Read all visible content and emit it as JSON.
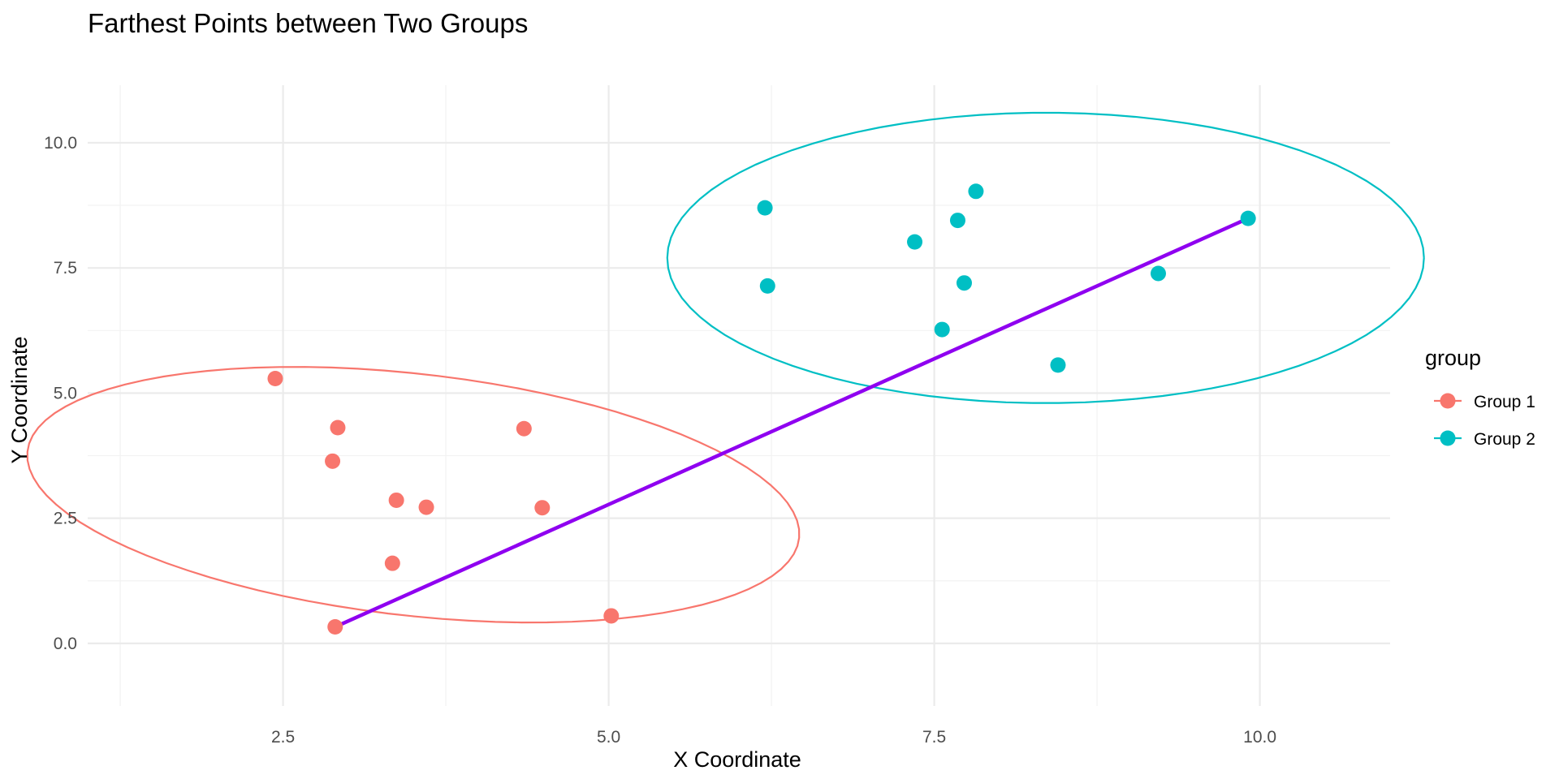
{
  "chart_data": {
    "type": "scatter",
    "title": "Farthest Points between Two Groups",
    "xlabel": "X Coordinate",
    "ylabel": "Y Coordinate",
    "xlim": [
      1.0,
      11.0
    ],
    "ylim": [
      -1.25,
      11.15
    ],
    "x_ticks": [
      2.5,
      5.0,
      7.5,
      10.0
    ],
    "x_tick_labels": [
      "2.5",
      "5.0",
      "7.5",
      "10.0"
    ],
    "y_ticks": [
      0.0,
      2.5,
      5.0,
      7.5,
      10.0
    ],
    "y_tick_labels": [
      "0.0",
      "2.5",
      "5.0",
      "7.5",
      "10.0"
    ],
    "grid": true,
    "legend": {
      "title": "group",
      "position": "right"
    },
    "series": [
      {
        "name": "Group 1",
        "color": "#F8766D",
        "points": [
          [
            2.44,
            5.29
          ],
          [
            2.92,
            4.31
          ],
          [
            2.88,
            3.64
          ],
          [
            3.37,
            2.86
          ],
          [
            3.6,
            2.72
          ],
          [
            3.34,
            1.6
          ],
          [
            2.9,
            0.33
          ],
          [
            4.35,
            4.29
          ],
          [
            4.49,
            2.71
          ],
          [
            5.02,
            0.55
          ]
        ],
        "ellipse": {
          "center": [
            3.5,
            2.97
          ],
          "rx": 2.25,
          "ry": 3.2,
          "rotation_deg": 58
        }
      },
      {
        "name": "Group 2",
        "color": "#00BFC4",
        "points": [
          [
            6.2,
            8.7
          ],
          [
            6.22,
            7.14
          ],
          [
            7.35,
            8.02
          ],
          [
            7.68,
            8.45
          ],
          [
            7.82,
            9.03
          ],
          [
            7.73,
            7.2
          ],
          [
            7.56,
            6.27
          ],
          [
            8.45,
            5.56
          ],
          [
            9.22,
            7.39
          ],
          [
            9.91,
            8.49
          ]
        ],
        "ellipse": {
          "center": [
            8.355,
            7.7
          ],
          "rx": 2.905,
          "ry": 2.9,
          "rotation_deg": 0
        }
      }
    ],
    "farthest_segment": {
      "color": "#8F00F0",
      "from": [
        2.9,
        0.33
      ],
      "to": [
        9.91,
        8.49
      ]
    }
  }
}
